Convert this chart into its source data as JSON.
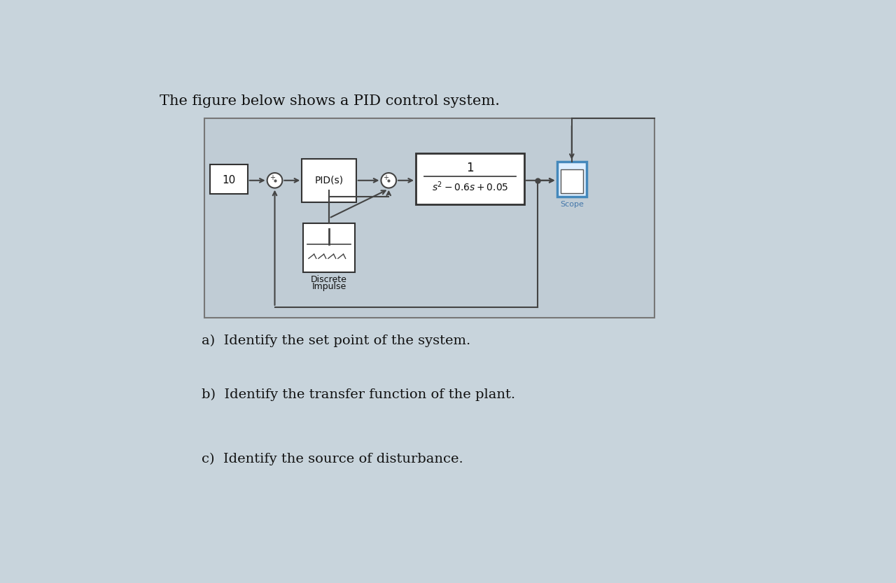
{
  "bg_color": "#c8d4dc",
  "title_text": "The figure below shows a PID control system.",
  "title_fontsize": 15,
  "question_a": "a)  Identify the set point of the system.",
  "question_b": "b)  Identify the transfer function of the plant.",
  "question_c": "c)  Identify the source of disturbance.",
  "q_fontsize": 14,
  "text_color": "#111111",
  "arrow_color": "#444444",
  "diagram_facecolor": "#c0cdd6",
  "diagram_edgecolor": "#666666",
  "block_facecolor": "#ffffff",
  "block_edgecolor": "#333333",
  "scope_edgecolor": "#4488bb",
  "scope_facecolor": "#ddeeff",
  "scope_inner_facecolor": "#ffffff",
  "scope_label_color": "#4477aa"
}
